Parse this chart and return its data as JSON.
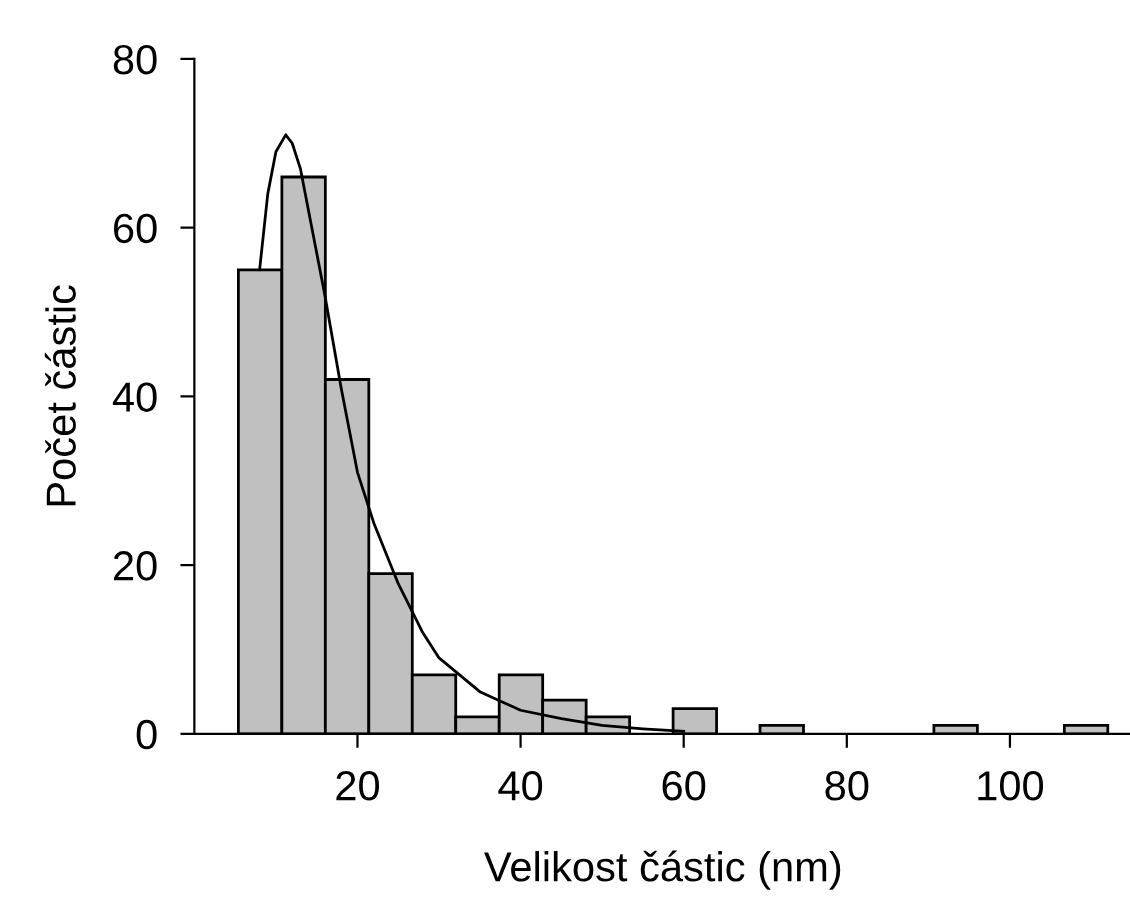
{
  "chart_data": {
    "type": "histogram",
    "xlabel": "Velikost částic (nm)",
    "ylabel": "Počet částic",
    "bins": [
      5.4,
      10.73,
      16.06,
      21.39,
      26.72,
      32.05,
      37.38,
      42.71,
      48.04,
      53.37,
      58.7,
      64.03,
      69.36,
      74.69,
      80.02,
      85.35,
      90.68,
      96.01,
      101.34,
      106.67,
      112.0
    ],
    "values": [
      55,
      66,
      42,
      19,
      7,
      2,
      7,
      4,
      2,
      0,
      3,
      0,
      1,
      0,
      0,
      0,
      1,
      0,
      0,
      1
    ],
    "color": "#c0c0c0",
    "series": [
      {
        "type": "line",
        "color": "#000000",
        "x": [
          8,
          9,
          10,
          11.2,
          12,
          13,
          14,
          16,
          18,
          20,
          22,
          25,
          28,
          30,
          35,
          40,
          45,
          50,
          55,
          60
        ],
        "values": [
          55,
          64,
          69,
          71,
          70,
          67,
          62,
          52,
          41,
          31,
          25,
          17.8,
          12,
          9,
          5,
          2.8,
          1.8,
          1,
          0.6,
          0.3
        ]
      }
    ],
    "xlim": [
      0,
      115
    ],
    "ylim": [
      0,
      80
    ],
    "xticks": [
      20,
      40,
      60,
      80,
      100
    ],
    "yticks": [
      0,
      20,
      40,
      60,
      80
    ],
    "grid": false,
    "legend": false
  }
}
